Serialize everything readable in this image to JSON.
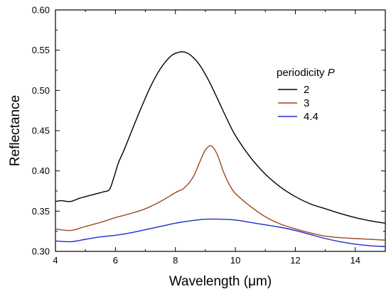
{
  "chart_data": {
    "type": "line",
    "xlabel": "Wavelength (μm)",
    "ylabel": "Reflectance",
    "xlim": [
      4,
      15
    ],
    "ylim": [
      0.3,
      0.6
    ],
    "xticks": [
      "4",
      "6",
      "8",
      "10",
      "12",
      "14"
    ],
    "yticks": [
      "0.30",
      "0.35",
      "0.40",
      "0.45",
      "0.50",
      "0.55",
      "0.60"
    ],
    "grid": false,
    "legend": {
      "title_text": "periodicity ",
      "title_symbol": "P",
      "placement": "top-right"
    },
    "series": [
      {
        "name": "2",
        "color": "#000000",
        "x": [
          4.0,
          4.2,
          4.5,
          4.8,
          5.0,
          5.3,
          5.6,
          5.8,
          5.95,
          6.1,
          6.3,
          6.6,
          6.9,
          7.2,
          7.5,
          7.8,
          8.0,
          8.25,
          8.5,
          8.8,
          9.1,
          9.4,
          9.7,
          10.0,
          10.5,
          11.0,
          11.5,
          12.0,
          12.5,
          13.0,
          13.5,
          14.0,
          14.5,
          15.0
        ],
        "y": [
          0.362,
          0.363,
          0.362,
          0.366,
          0.368,
          0.371,
          0.374,
          0.377,
          0.392,
          0.41,
          0.427,
          0.455,
          0.482,
          0.507,
          0.527,
          0.541,
          0.546,
          0.548,
          0.544,
          0.532,
          0.513,
          0.49,
          0.466,
          0.444,
          0.417,
          0.396,
          0.38,
          0.368,
          0.359,
          0.353,
          0.347,
          0.342,
          0.338,
          0.335
        ]
      },
      {
        "name": "3",
        "color": "#9b4a1e",
        "x": [
          4.0,
          4.5,
          5.0,
          5.5,
          6.0,
          6.5,
          7.0,
          7.5,
          8.0,
          8.3,
          8.6,
          8.8,
          9.0,
          9.2,
          9.4,
          9.6,
          9.8,
          10.0,
          10.5,
          11.0,
          11.5,
          12.0,
          12.5,
          13.0,
          13.5,
          14.0,
          14.5,
          15.0
        ],
        "y": [
          0.328,
          0.326,
          0.331,
          0.336,
          0.342,
          0.347,
          0.353,
          0.362,
          0.373,
          0.379,
          0.393,
          0.41,
          0.426,
          0.431,
          0.42,
          0.399,
          0.383,
          0.372,
          0.356,
          0.343,
          0.334,
          0.328,
          0.323,
          0.319,
          0.317,
          0.316,
          0.315,
          0.314
        ]
      },
      {
        "name": "4.4",
        "color": "#1d2ccc",
        "x": [
          4.0,
          4.5,
          5.0,
          5.5,
          6.0,
          6.5,
          7.0,
          7.5,
          8.0,
          8.5,
          9.0,
          9.5,
          10.0,
          10.5,
          11.0,
          11.5,
          12.0,
          12.5,
          13.0,
          13.5,
          14.0,
          14.5,
          15.0
        ],
        "y": [
          0.313,
          0.312,
          0.315,
          0.318,
          0.32,
          0.323,
          0.327,
          0.331,
          0.335,
          0.338,
          0.34,
          0.34,
          0.339,
          0.336,
          0.333,
          0.33,
          0.326,
          0.321,
          0.316,
          0.312,
          0.309,
          0.307,
          0.306
        ]
      }
    ]
  }
}
